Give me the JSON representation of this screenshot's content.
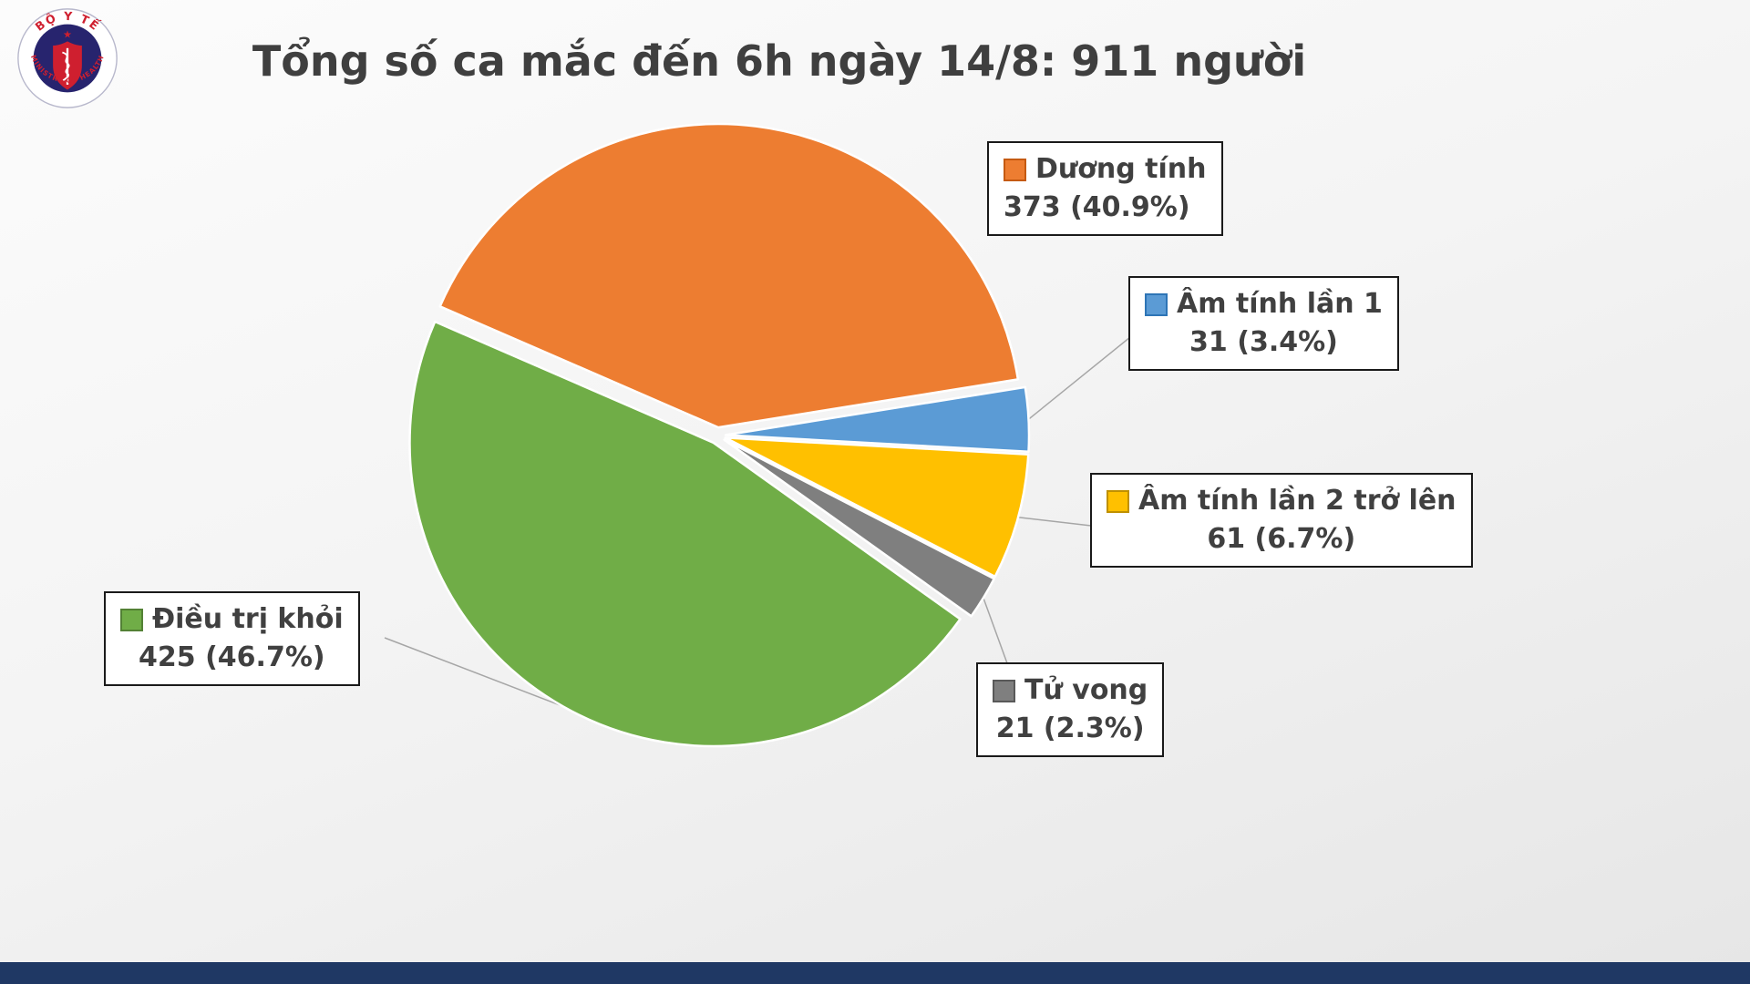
{
  "logo": {
    "top_text": "BỘ Y TẾ",
    "bottom_text": "MINISTRY OF HEALTH"
  },
  "chart_data": {
    "type": "pie",
    "title": "Tổng số ca mắc đến 6h ngày 14/8: 911 người",
    "total": 911,
    "unit": "người",
    "start_angle_deg": -66.5,
    "direction": "clockwise",
    "legend_position": "callout-labels",
    "slices": [
      {
        "label": "Dương tính",
        "value": 373,
        "pct": "40.9%",
        "value_text": "373 (40.9%)",
        "color": "#ED7D31",
        "border": "#C55A11"
      },
      {
        "label": "Âm tính lần 1",
        "value": 31,
        "pct": "3.4%",
        "value_text": "31 (3.4%)",
        "color": "#5B9BD5",
        "border": "#2E75B6"
      },
      {
        "label": "Âm tính lần 2 trở lên",
        "value": 61,
        "pct": "6.7%",
        "value_text": "61 (6.7%)",
        "color": "#FFC000",
        "border": "#BF9000"
      },
      {
        "label": "Tử vong",
        "value": 21,
        "pct": "2.3%",
        "value_text": "21 (2.3%)",
        "color": "#7F7F7F",
        "border": "#595959"
      },
      {
        "label": "Điều trị khỏi",
        "value": 425,
        "pct": "46.7%",
        "value_text": "425 (46.7%)",
        "color": "#70AD47",
        "border": "#538135"
      }
    ]
  },
  "colors": {
    "title_text": "#3F3F3F",
    "footer_bar": "#1F3864",
    "leader_line": "#A6A6A6",
    "logo_red": "#CF1F2F",
    "logo_navy": "#27246E"
  }
}
